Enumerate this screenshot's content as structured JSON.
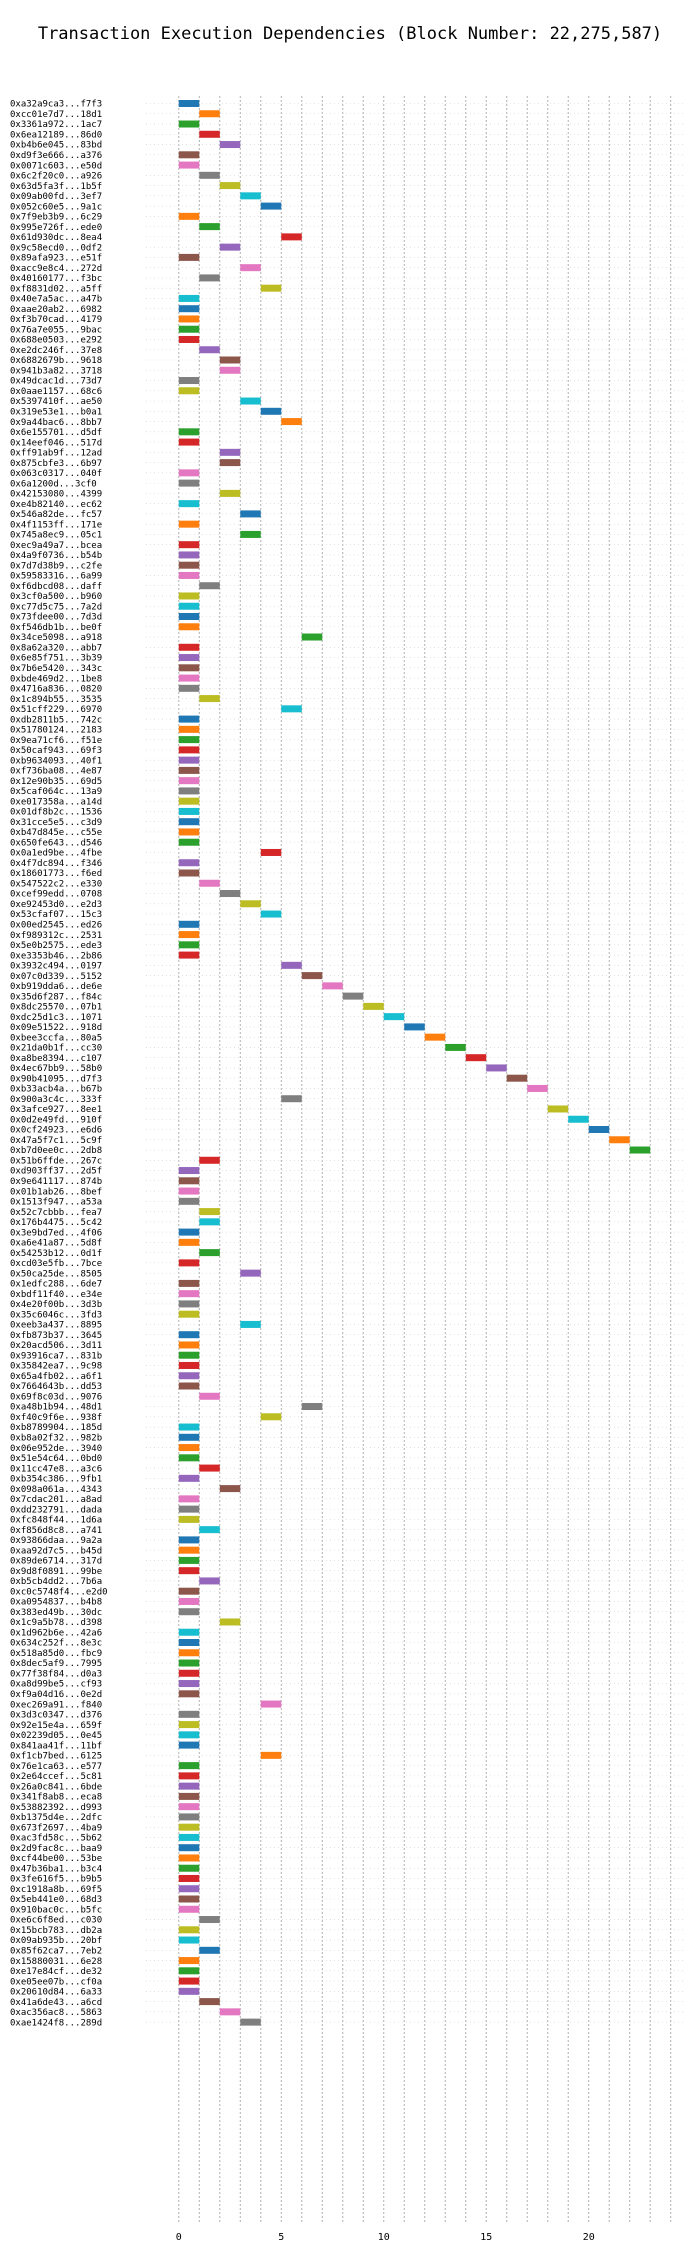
{
  "chart_data": {
    "type": "bar",
    "orientation": "horizontal",
    "title": "Transaction Execution Dependencies (Block Number: 22,275,587)",
    "xlabel": "",
    "ylabel": "",
    "xlim": [
      -1.6,
      24.6
    ],
    "xticks": [
      0,
      5,
      10,
      15,
      20
    ],
    "grid": true,
    "grid_axis": "x",
    "legend": false,
    "bar_width": 1,
    "palette": [
      "#1f77b4",
      "#ff7f0e",
      "#2ca02c",
      "#d62728",
      "#9467bd",
      "#8c564b",
      "#e377c2",
      "#7f7f7f",
      "#bcbd22",
      "#17becf"
    ],
    "transactions": [
      {
        "label": "0xa32a9ca3...f7f3",
        "start": 0
      },
      {
        "label": "0xcc01e7d7...18d1",
        "start": 1
      },
      {
        "label": "0x3361a972...1ac7",
        "start": 0
      },
      {
        "label": "0x6ea12189...86d0",
        "start": 1
      },
      {
        "label": "0xb4b6e045...83bd",
        "start": 2
      },
      {
        "label": "0xd9f3e666...a376",
        "start": 0
      },
      {
        "label": "0x0071c603...e50d",
        "start": 0
      },
      {
        "label": "0x6c2f20c0...a926",
        "start": 1
      },
      {
        "label": "0x63d5fa3f...1b5f",
        "start": 2
      },
      {
        "label": "0x09ab00fd...3ef7",
        "start": 3
      },
      {
        "label": "0x052c60e5...9a1c",
        "start": 4
      },
      {
        "label": "0x7f9eb3b9...6c29",
        "start": 0
      },
      {
        "label": "0x995e726f...ede0",
        "start": 1
      },
      {
        "label": "0x61d930dc...8ea4",
        "start": 5
      },
      {
        "label": "0x9c58ecd0...0df2",
        "start": 2
      },
      {
        "label": "0x89afa923...e51f",
        "start": 0
      },
      {
        "label": "0xacc9e8c4...272d",
        "start": 3
      },
      {
        "label": "0x40160177...f3bc",
        "start": 1
      },
      {
        "label": "0xf8831d02...a5ff",
        "start": 4
      },
      {
        "label": "0x40e7a5ac...a47b",
        "start": 0
      },
      {
        "label": "0xaae20ab2...6982",
        "start": 0
      },
      {
        "label": "0xf3b70cad...4179",
        "start": 0
      },
      {
        "label": "0x76a7e055...9bac",
        "start": 0
      },
      {
        "label": "0x688e0503...e292",
        "start": 0
      },
      {
        "label": "0xe2dc246f...37e8",
        "start": 1
      },
      {
        "label": "0x6882679b...9618",
        "start": 2
      },
      {
        "label": "0x941b3a82...3718",
        "start": 2
      },
      {
        "label": "0x49dcac1d...73d7",
        "start": 0
      },
      {
        "label": "0x0aae1157...68c6",
        "start": 0
      },
      {
        "label": "0x5397410f...ae50",
        "start": 3
      },
      {
        "label": "0x319e53e1...b0a1",
        "start": 4
      },
      {
        "label": "0x9a44bac6...8bb7",
        "start": 5
      },
      {
        "label": "0x6e155701...d5df",
        "start": 0
      },
      {
        "label": "0x14eef046...517d",
        "start": 0
      },
      {
        "label": "0xff91ab9f...12ad",
        "start": 2
      },
      {
        "label": "0x875cbfe3...6b97",
        "start": 2
      },
      {
        "label": "0x063c0317...040f",
        "start": 0
      },
      {
        "label": "0x6a1200d...3cf0",
        "start": 0
      },
      {
        "label": "0x42153080...4399",
        "start": 2
      },
      {
        "label": "0xe4b82140...ec62",
        "start": 0
      },
      {
        "label": "0x546a82de...fc57",
        "start": 3
      },
      {
        "label": "0x4f1153ff...171e",
        "start": 0
      },
      {
        "label": "0x745a8ec9...05c1",
        "start": 3
      },
      {
        "label": "0xec9a49a7...bcea",
        "start": 0
      },
      {
        "label": "0x4a9f0736...b54b",
        "start": 0
      },
      {
        "label": "0x7d7d38b9...c2fe",
        "start": 0
      },
      {
        "label": "0x59583316...6a99",
        "start": 0
      },
      {
        "label": "0xf6dbcd08...daff",
        "start": 1
      },
      {
        "label": "0x3cf0a500...b960",
        "start": 0
      },
      {
        "label": "0xc77d5c75...7a2d",
        "start": 0
      },
      {
        "label": "0x73fdee00...7d3d",
        "start": 0
      },
      {
        "label": "0xf546db1b...be0f",
        "start": 0
      },
      {
        "label": "0x34ce5098...a918",
        "start": 6
      },
      {
        "label": "0x8a62a320...abb7",
        "start": 0
      },
      {
        "label": "0x6e85f751...3b39",
        "start": 0
      },
      {
        "label": "0x7b6e5420...343c",
        "start": 0
      },
      {
        "label": "0xbde469d2...1be8",
        "start": 0
      },
      {
        "label": "0x4716a836...0820",
        "start": 0
      },
      {
        "label": "0x1c894b55...3535",
        "start": 1
      },
      {
        "label": "0x51cff229...6970",
        "start": 5
      },
      {
        "label": "0xdb2811b5...742c",
        "start": 0
      },
      {
        "label": "0x51780124...2183",
        "start": 0
      },
      {
        "label": "0x9ea71cf6...f51e",
        "start": 0
      },
      {
        "label": "0x50caf943...69f3",
        "start": 0
      },
      {
        "label": "0xb9634093...40f1",
        "start": 0
      },
      {
        "label": "0xf736ba08...4e87",
        "start": 0
      },
      {
        "label": "0x12e90b35...69d5",
        "start": 0
      },
      {
        "label": "0x5caf064c...13a9",
        "start": 0
      },
      {
        "label": "0xe017358a...a14d",
        "start": 0
      },
      {
        "label": "0x01df8b2c...1536",
        "start": 0
      },
      {
        "label": "0x31cce5e5...c3d9",
        "start": 0
      },
      {
        "label": "0xb47d845e...c55e",
        "start": 0
      },
      {
        "label": "0x650fe643...d546",
        "start": 0
      },
      {
        "label": "0x0a1ed9be...4fbe",
        "start": 4
      },
      {
        "label": "0x4f7dc894...f346",
        "start": 0
      },
      {
        "label": "0x18601773...f6ed",
        "start": 0
      },
      {
        "label": "0x547522c2...e330",
        "start": 1
      },
      {
        "label": "0xcef99edd...0708",
        "start": 2
      },
      {
        "label": "0xe92453d0...e2d3",
        "start": 3
      },
      {
        "label": "0x53cfaf07...15c3",
        "start": 4
      },
      {
        "label": "0x00ed2545...ed26",
        "start": 0
      },
      {
        "label": "0xf989312c...2531",
        "start": 0
      },
      {
        "label": "0x5e0b2575...ede3",
        "start": 0
      },
      {
        "label": "0xe3353b46...2b86",
        "start": 0
      },
      {
        "label": "0x3932c494...0197",
        "start": 5
      },
      {
        "label": "0x07c0d339...5152",
        "start": 6
      },
      {
        "label": "0xb919dda6...de6e",
        "start": 7
      },
      {
        "label": "0x35d6f287...f84c",
        "start": 8
      },
      {
        "label": "0x8dc25570...07b1",
        "start": 9
      },
      {
        "label": "0xdc25d1c3...1071",
        "start": 10
      },
      {
        "label": "0x09e51522...918d",
        "start": 11
      },
      {
        "label": "0xbee3ccfa...80a5",
        "start": 12
      },
      {
        "label": "0x21da0b1f...cc30",
        "start": 13
      },
      {
        "label": "0xa8be8394...c107",
        "start": 14
      },
      {
        "label": "0x4ec67bb9...58b0",
        "start": 15
      },
      {
        "label": "0x90b41095...d7f3",
        "start": 16
      },
      {
        "label": "0xb33acb4a...b67b",
        "start": 17
      },
      {
        "label": "0x900a3c4c...333f",
        "start": 5
      },
      {
        "label": "0x3afce927...8ee1",
        "start": 18
      },
      {
        "label": "0x0d2e49fd...910f",
        "start": 19
      },
      {
        "label": "0x0cf24923...e6d6",
        "start": 20
      },
      {
        "label": "0x47a5f7c1...5c9f",
        "start": 21
      },
      {
        "label": "0xb7d0ee0c...2db8",
        "start": 22
      },
      {
        "label": "0x51b6ffde...267c",
        "start": 1
      },
      {
        "label": "0xd903ff37...2d5f",
        "start": 0
      },
      {
        "label": "0x9e641117...874b",
        "start": 0
      },
      {
        "label": "0x01b1ab26...8bef",
        "start": 0
      },
      {
        "label": "0x1513f947...a53a",
        "start": 0
      },
      {
        "label": "0x52c7cbbb...fea7",
        "start": 1
      },
      {
        "label": "0x176b4475...5c42",
        "start": 1
      },
      {
        "label": "0x3e9bd7ed...4f06",
        "start": 0
      },
      {
        "label": "0xa6e41a87...5d8f",
        "start": 0
      },
      {
        "label": "0x54253b12...0d1f",
        "start": 1
      },
      {
        "label": "0xcd03e5fb...7bce",
        "start": 0
      },
      {
        "label": "0x50ca25de...8505",
        "start": 3
      },
      {
        "label": "0x1edfc288...6de7",
        "start": 0
      },
      {
        "label": "0xbdf11f40...e34e",
        "start": 0
      },
      {
        "label": "0x4e20f00b...3d3b",
        "start": 0
      },
      {
        "label": "0x35c6046c...3fd3",
        "start": 0
      },
      {
        "label": "0xeeb3a437...8895",
        "start": 3
      },
      {
        "label": "0xfb873b37...3645",
        "start": 0
      },
      {
        "label": "0x20acd506...3d11",
        "start": 0
      },
      {
        "label": "0x93916ca7...831b",
        "start": 0
      },
      {
        "label": "0x35842ea7...9c98",
        "start": 0
      },
      {
        "label": "0x65a4fb02...a6f1",
        "start": 0
      },
      {
        "label": "0x7664643b...dd53",
        "start": 0
      },
      {
        "label": "0x69f8c03d...9076",
        "start": 1
      },
      {
        "label": "0xa48b1b94...48d1",
        "start": 6
      },
      {
        "label": "0xf40c9f6e...938f",
        "start": 4
      },
      {
        "label": "0xb8789904...185d",
        "start": 0
      },
      {
        "label": "0xb8a02f32...982b",
        "start": 0
      },
      {
        "label": "0x06e952de...3940",
        "start": 0
      },
      {
        "label": "0x51e54c64...0bd0",
        "start": 0
      },
      {
        "label": "0x11cc47e8...a3c6",
        "start": 1
      },
      {
        "label": "0xb354c386...9fb1",
        "start": 0
      },
      {
        "label": "0x098a061a...4343",
        "start": 2
      },
      {
        "label": "0x7cdac201...a8ad",
        "start": 0
      },
      {
        "label": "0xdd232791...dada",
        "start": 0
      },
      {
        "label": "0xfc848f44...1d6a",
        "start": 0
      },
      {
        "label": "0xf856d8c8...a741",
        "start": 1
      },
      {
        "label": "0x93866daa...9a2a",
        "start": 0
      },
      {
        "label": "0xaa92d7c5...b45d",
        "start": 0
      },
      {
        "label": "0x89de6714...317d",
        "start": 0
      },
      {
        "label": "0x9d8f0891...99be",
        "start": 0
      },
      {
        "label": "0xb5cb4dd2...7b6a",
        "start": 1
      },
      {
        "label": "0xc0c5748f4...e2d0",
        "start": 0
      },
      {
        "label": "0xa0954837...b4b8",
        "start": 0
      },
      {
        "label": "0x383ed49b...30dc",
        "start": 0
      },
      {
        "label": "0x1c9a5b78...d398",
        "start": 2
      },
      {
        "label": "0x1d962b6e...42a6",
        "start": 0
      },
      {
        "label": "0x634c252f...8e3c",
        "start": 0
      },
      {
        "label": "0x518a85d0...fbc9",
        "start": 0
      },
      {
        "label": "0x8dec5af9...7995",
        "start": 0
      },
      {
        "label": "0x77f38f84...d0a3",
        "start": 0
      },
      {
        "label": "0xa8d99be5...cf93",
        "start": 0
      },
      {
        "label": "0xf9a04d16...0e2d",
        "start": 0
      },
      {
        "label": "0xec269a91...f840",
        "start": 4
      },
      {
        "label": "0x3d3c0347...d376",
        "start": 0
      },
      {
        "label": "0x92e15e4a...659f",
        "start": 0
      },
      {
        "label": "0x02239d05...0e45",
        "start": 0
      },
      {
        "label": "0x841aa41f...11bf",
        "start": 0
      },
      {
        "label": "0xf1cb7bed...6125",
        "start": 4
      },
      {
        "label": "0x76e1ca63...e577",
        "start": 0
      },
      {
        "label": "0x2e64ccef...5c81",
        "start": 0
      },
      {
        "label": "0x26a0c841...6bde",
        "start": 0
      },
      {
        "label": "0x341f8ab8...eca8",
        "start": 0
      },
      {
        "label": "0x53882392...d993",
        "start": 0
      },
      {
        "label": "0xb1375d4e...2dfc",
        "start": 0
      },
      {
        "label": "0x673f2697...4ba9",
        "start": 0
      },
      {
        "label": "0xac3fd58c...5b62",
        "start": 0
      },
      {
        "label": "0x2d9fac8c...baa9",
        "start": 0
      },
      {
        "label": "0xcf44be00...53be",
        "start": 0
      },
      {
        "label": "0x47b36ba1...b3c4",
        "start": 0
      },
      {
        "label": "0x3fe616f5...b9b5",
        "start": 0
      },
      {
        "label": "0xc1918a8b...69f5",
        "start": 0
      },
      {
        "label": "0x5eb441e0...68d3",
        "start": 0
      },
      {
        "label": "0x910bac0c...b5fc",
        "start": 0
      },
      {
        "label": "0xe6c6f8ed...c030",
        "start": 1
      },
      {
        "label": "0x15bcb783...db2a",
        "start": 0
      },
      {
        "label": "0x09ab935b...20bf",
        "start": 0
      },
      {
        "label": "0x85f62ca7...7eb2",
        "start": 1
      },
      {
        "label": "0x15880031...6e28",
        "start": 0
      },
      {
        "label": "0xe17e84cf...de32",
        "start": 0
      },
      {
        "label": "0xe05ee07b...cf0a",
        "start": 0
      },
      {
        "label": "0x20610d84...6a33",
        "start": 0
      },
      {
        "label": "0x41a6de43...a6cd",
        "start": 1
      },
      {
        "label": "0xac356ac8...5863",
        "start": 2
      },
      {
        "label": "0xae1424f8...289d",
        "start": 3
      }
    ]
  }
}
